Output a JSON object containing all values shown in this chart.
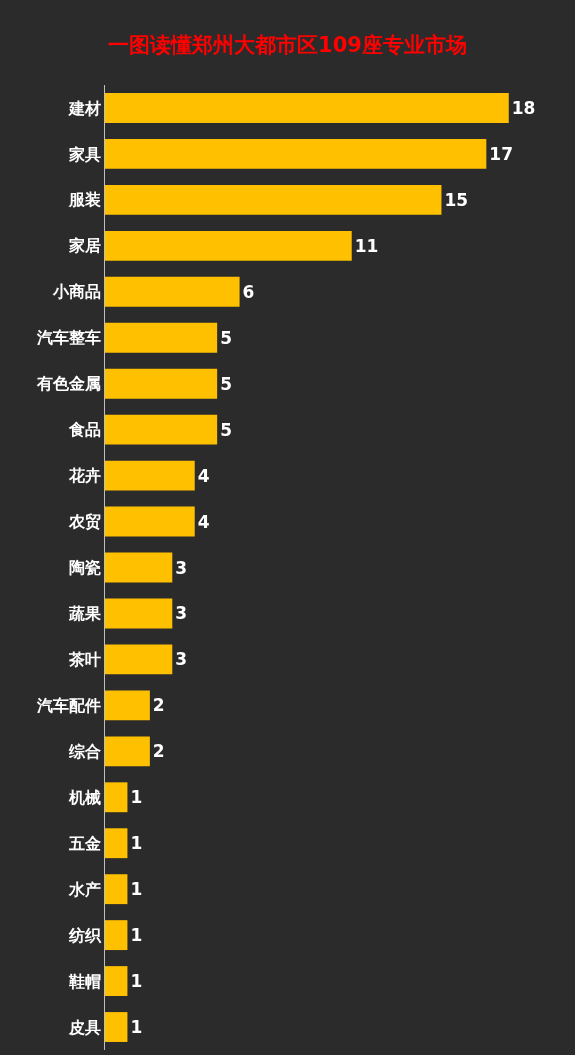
{
  "chart_data": {
    "type": "bar",
    "orientation": "horizontal",
    "title": "一图读懂郑州大都市区109座专业市场",
    "categories": [
      "建材",
      "家具",
      "服装",
      "家居",
      "小商品",
      "汽车整车",
      "有色金属",
      "食品",
      "花卉",
      "农贸",
      "陶瓷",
      "蔬果",
      "茶叶",
      "汽车配件",
      "综合",
      "机械",
      "五金",
      "水产",
      "纺织",
      "鞋帽",
      "皮具"
    ],
    "values": [
      18,
      17,
      15,
      11,
      6,
      5,
      5,
      5,
      4,
      4,
      3,
      3,
      3,
      2,
      2,
      1,
      1,
      1,
      1,
      1,
      1
    ],
    "color": "#ffc000",
    "data_labels": true
  }
}
